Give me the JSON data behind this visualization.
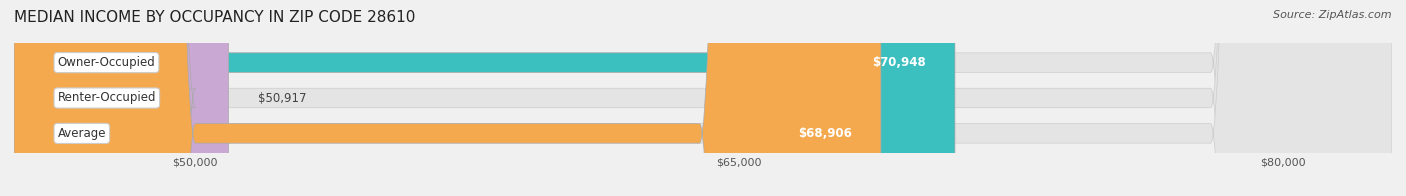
{
  "title": "MEDIAN INCOME BY OCCUPANCY IN ZIP CODE 28610",
  "source": "Source: ZipAtlas.com",
  "categories": [
    "Owner-Occupied",
    "Renter-Occupied",
    "Average"
  ],
  "values": [
    70948,
    50917,
    68906
  ],
  "bar_colors": [
    "#3bbfbf",
    "#c9a8d4",
    "#f5a94e"
  ],
  "value_labels": [
    "$70,948",
    "$50,917",
    "$68,906"
  ],
  "value_inside": [
    true,
    false,
    true
  ],
  "xmin": 45000,
  "xmax": 83000,
  "xticks": [
    50000,
    65000,
    80000
  ],
  "xtick_labels": [
    "$50,000",
    "$65,000",
    "$80,000"
  ],
  "background_color": "#f0f0f0",
  "bar_bg_color": "#e4e4e4",
  "bar_height": 0.55,
  "title_fontsize": 11,
  "source_fontsize": 8,
  "label_fontsize": 8.5,
  "value_fontsize": 8.5,
  "tick_fontsize": 8
}
